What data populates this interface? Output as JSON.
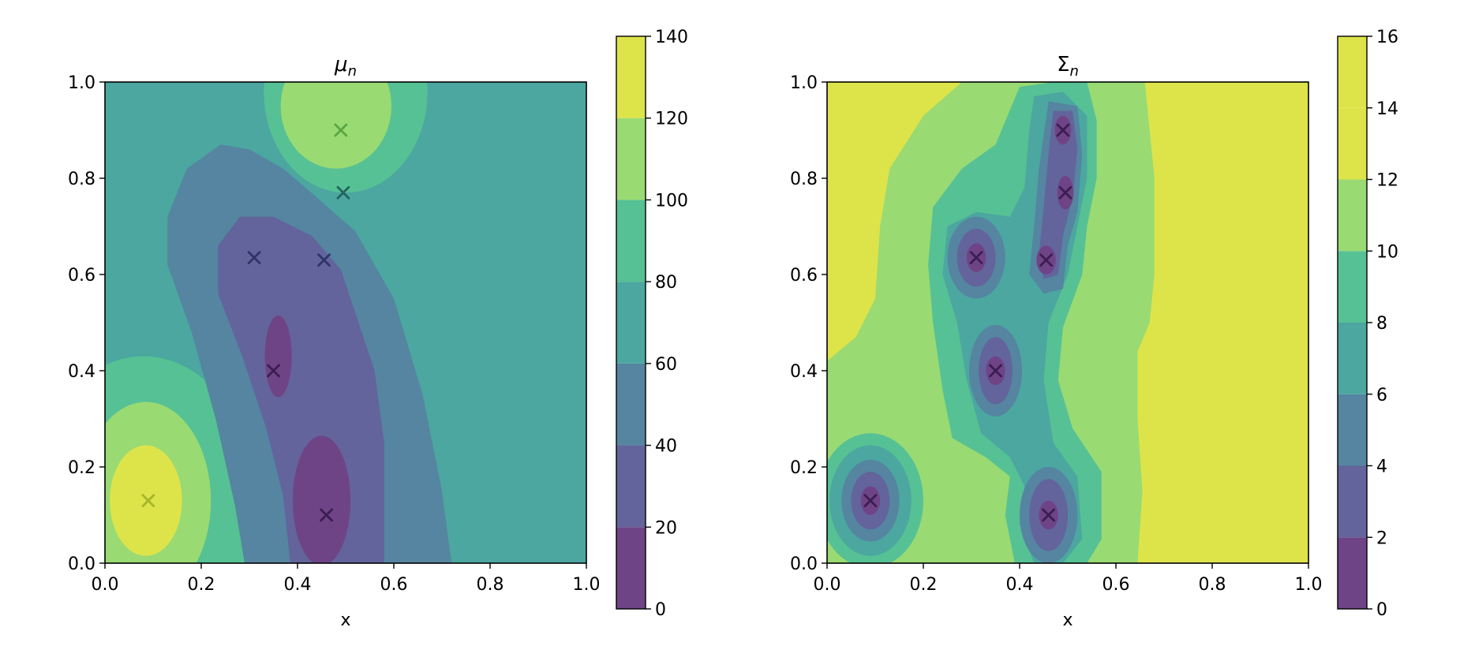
{
  "chart_data": [
    {
      "type": "contourf",
      "title": "μ",
      "title_subscript": "n",
      "xlabel": "x",
      "ylabel": "",
      "xlim": [
        0.0,
        1.0
      ],
      "ylim": [
        0.0,
        1.0
      ],
      "x_ticks": [
        "0.0",
        "0.2",
        "0.4",
        "0.6",
        "0.8",
        "1.0"
      ],
      "y_ticks": [
        "0.0",
        "0.2",
        "0.4",
        "0.6",
        "0.8",
        "1.0"
      ],
      "colorbar": {
        "levels": [
          0,
          20,
          40,
          60,
          80,
          100,
          120,
          140
        ],
        "tick_labels": [
          "0",
          "20",
          "40",
          "60",
          "80",
          "100",
          "120",
          "140"
        ],
        "colors": [
          "#6f4487",
          "#63649c",
          "#5585a0",
          "#4ba7a0",
          "#56c194",
          "#99da73",
          "#dde44a"
        ]
      },
      "background_level_index": 3,
      "observations": [
        {
          "x": 0.09,
          "y": 0.13,
          "value": 130
        },
        {
          "x": 0.46,
          "y": 0.1,
          "value": 5
        },
        {
          "x": 0.35,
          "y": 0.4,
          "value": 10
        },
        {
          "x": 0.31,
          "y": 0.635,
          "value": 25
        },
        {
          "x": 0.455,
          "y": 0.63,
          "value": 35
        },
        {
          "x": 0.495,
          "y": 0.77,
          "value": 65
        },
        {
          "x": 0.49,
          "y": 0.9,
          "value": 110
        }
      ]
    },
    {
      "type": "contourf",
      "title": "Σ",
      "title_subscript": "n",
      "xlabel": "x",
      "ylabel": "",
      "xlim": [
        0.0,
        1.0
      ],
      "ylim": [
        0.0,
        1.0
      ],
      "x_ticks": [
        "0.0",
        "0.2",
        "0.4",
        "0.6",
        "0.8",
        "1.0"
      ],
      "y_ticks": [
        "0.0",
        "0.2",
        "0.4",
        "0.6",
        "0.8",
        "1.0"
      ],
      "colorbar": {
        "levels": [
          0,
          2,
          4,
          6,
          8,
          10,
          12,
          14,
          16
        ],
        "tick_labels": [
          "0",
          "2",
          "4",
          "6",
          "8",
          "10",
          "12",
          "14",
          "16"
        ],
        "colors": [
          "#6f4487",
          "#63649c",
          "#5585a0",
          "#4ba7a0",
          "#56c194",
          "#99da73",
          "#dde44a",
          "#dde44a"
        ]
      },
      "background_level_index": 6,
      "observations": [
        {
          "x": 0.09,
          "y": 0.13
        },
        {
          "x": 0.46,
          "y": 0.1
        },
        {
          "x": 0.35,
          "y": 0.4
        },
        {
          "x": 0.31,
          "y": 0.635
        },
        {
          "x": 0.455,
          "y": 0.63
        },
        {
          "x": 0.495,
          "y": 0.77
        },
        {
          "x": 0.49,
          "y": 0.9
        }
      ]
    }
  ]
}
